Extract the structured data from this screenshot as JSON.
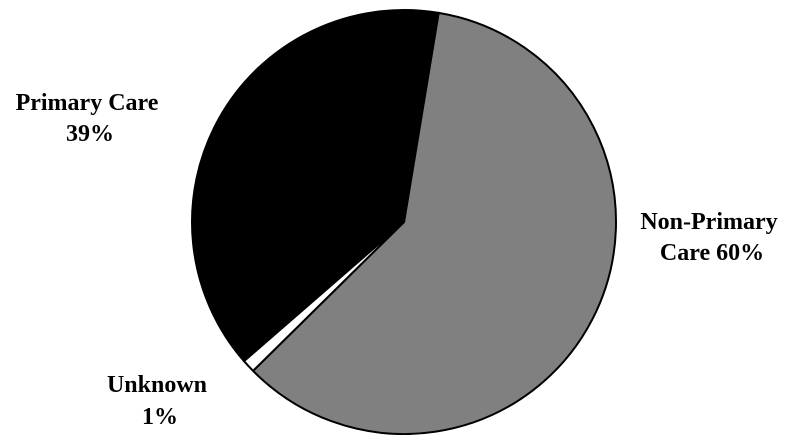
{
  "chart_data": {
    "type": "pie",
    "title": "",
    "slices": [
      {
        "name": "Non-Primary Care",
        "value": 60,
        "label_lines": [
          "Non-Primary",
          "Care 60%"
        ],
        "color": "#808080"
      },
      {
        "name": "Unknown",
        "value": 1,
        "label_lines": [
          "Unknown",
          "1%"
        ],
        "color": "#ffffff"
      },
      {
        "name": "Primary Care",
        "value": 39,
        "label_lines": [
          "Primary Care",
          "39%"
        ],
        "color": "#000000"
      }
    ],
    "legend": "none"
  }
}
